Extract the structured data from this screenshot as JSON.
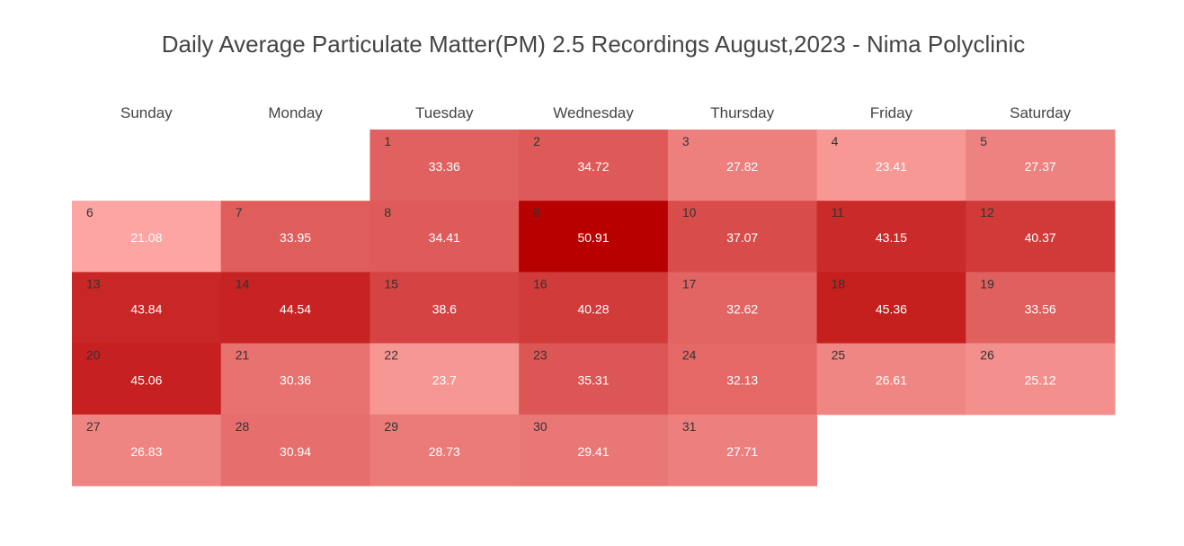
{
  "chart_data": {
    "type": "heatmap",
    "title": "Daily Average Particulate Matter(PM) 2.5 Recordings August,2023 - Nima Polyclinic",
    "weekday_headers": [
      "Sunday",
      "Monday",
      "Tuesday",
      "Wednesday",
      "Thursday",
      "Friday",
      "Saturday"
    ],
    "month": "August",
    "year": 2023,
    "first_weekday": "Tuesday",
    "color_scale": {
      "low_color": "#FCA5A2",
      "high_color": "#B90000",
      "min": 21.08,
      "max": 50.91
    },
    "days": [
      {
        "day": 1,
        "value": 33.36
      },
      {
        "day": 2,
        "value": 34.72
      },
      {
        "day": 3,
        "value": 27.82
      },
      {
        "day": 4,
        "value": 23.41
      },
      {
        "day": 5,
        "value": 27.37
      },
      {
        "day": 6,
        "value": 21.08
      },
      {
        "day": 7,
        "value": 33.95
      },
      {
        "day": 8,
        "value": 34.41
      },
      {
        "day": 9,
        "value": 50.91
      },
      {
        "day": 10,
        "value": 37.07
      },
      {
        "day": 11,
        "value": 43.15
      },
      {
        "day": 12,
        "value": 40.37
      },
      {
        "day": 13,
        "value": 43.84
      },
      {
        "day": 14,
        "value": 44.54
      },
      {
        "day": 15,
        "value": 38.6
      },
      {
        "day": 16,
        "value": 40.28
      },
      {
        "day": 17,
        "value": 32.62
      },
      {
        "day": 18,
        "value": 45.36
      },
      {
        "day": 19,
        "value": 33.56
      },
      {
        "day": 20,
        "value": 45.06
      },
      {
        "day": 21,
        "value": 30.36
      },
      {
        "day": 22,
        "value": 23.7
      },
      {
        "day": 23,
        "value": 35.31
      },
      {
        "day": 24,
        "value": 32.13
      },
      {
        "day": 25,
        "value": 26.61
      },
      {
        "day": 26,
        "value": 25.12
      },
      {
        "day": 27,
        "value": 26.83
      },
      {
        "day": 28,
        "value": 30.94
      },
      {
        "day": 29,
        "value": 28.73
      },
      {
        "day": 30,
        "value": 29.41
      },
      {
        "day": 31,
        "value": 27.71
      }
    ]
  }
}
